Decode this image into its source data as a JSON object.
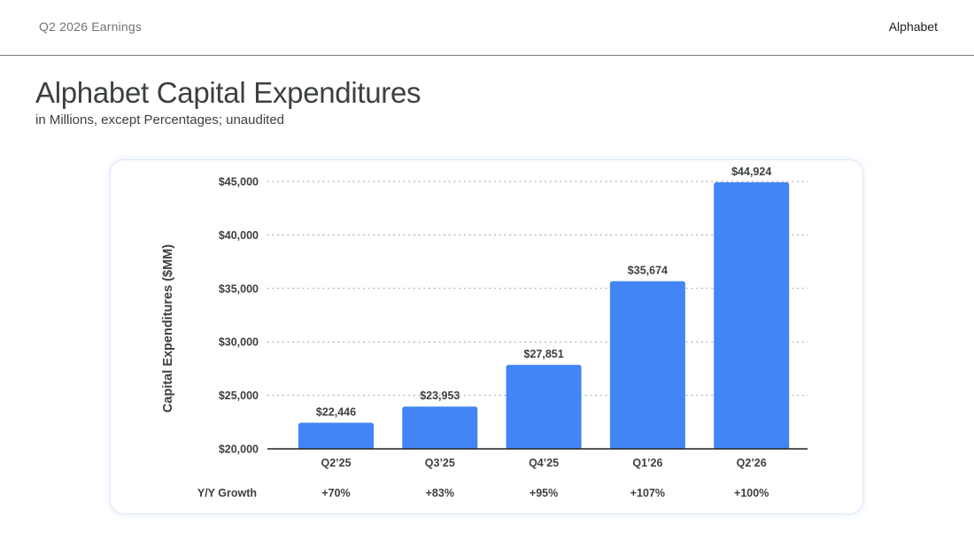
{
  "header": {
    "left_label": "Q2 2026 Earnings",
    "brand": "Alphabet"
  },
  "page": {
    "title": "Alphabet Capital Expenditures",
    "subtitle": "in Millions, except Percentages; unaudited"
  },
  "colors": {
    "bar": "#4285f4",
    "text": "#3c4043",
    "grid": "#9aa0a6"
  },
  "chart_data": {
    "type": "bar",
    "title": "",
    "ylabel": "Capital Expenditures ($MM)",
    "xlabel": "",
    "categories": [
      "Q2’25",
      "Q3’25",
      "Q4’25",
      "Q1’26",
      "Q2’26"
    ],
    "values": [
      22446,
      23953,
      27851,
      35674,
      44924
    ],
    "value_labels": [
      "$22,446",
      "$23,953",
      "$27,851",
      "$35,674",
      "$44,924"
    ],
    "ylim": [
      20000,
      45000
    ],
    "yticks": [
      20000,
      25000,
      30000,
      35000,
      40000,
      45000
    ],
    "ytick_labels": [
      "$20,000",
      "$25,000",
      "$30,000",
      "$35,000",
      "$40,000",
      "$45,000"
    ],
    "grid": true,
    "growth_row": {
      "label": "Y/Y Growth",
      "values": [
        "+70%",
        "+83%",
        "+95%",
        "+107%",
        "+100%"
      ]
    }
  }
}
